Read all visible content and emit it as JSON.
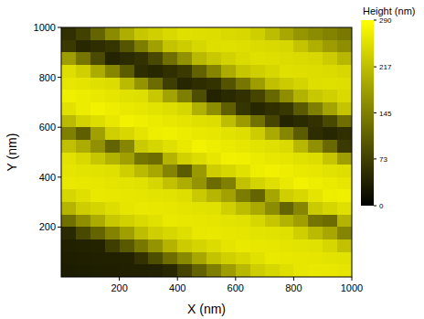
{
  "chart_data": {
    "type": "heatmap",
    "x_label": "X (nm)",
    "y_label": "Y (nm)",
    "colorbar_label": "Height (nm)",
    "xlim": [
      0,
      1000
    ],
    "ylim": [
      0,
      1000
    ],
    "xticks": [
      200,
      400,
      600,
      800,
      1000
    ],
    "yticks": [
      200,
      400,
      600,
      800,
      1000
    ],
    "color_range": [
      0,
      290
    ],
    "color_ticks": [
      0,
      73,
      145,
      217,
      290
    ],
    "x": [
      25,
      75,
      125,
      175,
      225,
      275,
      325,
      375,
      425,
      475,
      525,
      575,
      625,
      675,
      725,
      775,
      825,
      875,
      925,
      975
    ],
    "y": [
      975,
      925,
      875,
      825,
      775,
      725,
      675,
      625,
      575,
      525,
      475,
      425,
      375,
      325,
      275,
      225,
      175,
      125,
      75,
      25
    ],
    "cells": [
      [
        55,
        74,
        114,
        158,
        198,
        226,
        236,
        247,
        255,
        253,
        251,
        248,
        246,
        235,
        214,
        190,
        170,
        159,
        149,
        138
      ],
      [
        65,
        44,
        52,
        60,
        98,
        142,
        182,
        222,
        232,
        243,
        253,
        254,
        252,
        249,
        247,
        244,
        222,
        199,
        177,
        162
      ],
      [
        180,
        133,
        84,
        41,
        49,
        57,
        82,
        126,
        166,
        210,
        228,
        239,
        249,
        255,
        252,
        250,
        248,
        246,
        231,
        208
      ],
      [
        253,
        236,
        196,
        152,
        103,
        51,
        45,
        54,
        66,
        110,
        150,
        194,
        224,
        235,
        245,
        255,
        253,
        251,
        249,
        246
      ],
      [
        262,
        259,
        255,
        250,
        212,
        168,
        123,
        70,
        43,
        51,
        58,
        94,
        134,
        178,
        218,
        231,
        241,
        252,
        254,
        252
      ],
      [
        272,
        268,
        264,
        260,
        256,
        252,
        228,
        184,
        143,
        89,
        40,
        48,
        55,
        78,
        118,
        162,
        202,
        227,
        237,
        248
      ],
      [
        256,
        268,
        274,
        269,
        265,
        262,
        258,
        253,
        244,
        200,
        160,
        108,
        60,
        45,
        53,
        62,
        102,
        146,
        186,
        223
      ],
      [
        212,
        240,
        251,
        263,
        274,
        271,
        267,
        263,
        259,
        255,
        251,
        216,
        176,
        128,
        79,
        41,
        49,
        57,
        82,
        126
      ],
      [
        146,
        108,
        182,
        235,
        246,
        259,
        270,
        272,
        268,
        264,
        261,
        257,
        253,
        232,
        192,
        152,
        103,
        51,
        45,
        54
      ],
      [
        218,
        194,
        164,
        113,
        152,
        230,
        242,
        255,
        265,
        274,
        270,
        266,
        262,
        258,
        254,
        248,
        208,
        164,
        119,
        65
      ],
      [
        257,
        247,
        226,
        202,
        181,
        132,
        123,
        204,
        238,
        250,
        261,
        273,
        272,
        267,
        263,
        260,
        256,
        251,
        224,
        180
      ],
      [
        260,
        258,
        257,
        255,
        235,
        211,
        190,
        150,
        104,
        174,
        233,
        245,
        256,
        269,
        273,
        269,
        265,
        261,
        257,
        253
      ],
      [
        264,
        263,
        261,
        259,
        258,
        256,
        243,
        220,
        198,
        168,
        122,
        145,
        219,
        240,
        252,
        264,
        275,
        270,
        266,
        262
      ],
      [
        245,
        255,
        264,
        263,
        262,
        260,
        258,
        257,
        252,
        229,
        207,
        183,
        141,
        115,
        189,
        235,
        246,
        259,
        270,
        272
      ],
      [
        206,
        233,
        241,
        251,
        260,
        264,
        263,
        261,
        259,
        257,
        256,
        237,
        215,
        192,
        159,
        113,
        152,
        230,
        242,
        255
      ],
      [
        127,
        162,
        194,
        228,
        238,
        248,
        256,
        265,
        263,
        261,
        260,
        258,
        256,
        245,
        224,
        202,
        181,
        132,
        123,
        204
      ],
      [
        48,
        83,
        114,
        149,
        181,
        216,
        234,
        244,
        253,
        263,
        264,
        262,
        260,
        258,
        257,
        255,
        235,
        211,
        190,
        150
      ],
      [
        37,
        39,
        40,
        70,
        101,
        136,
        168,
        203,
        231,
        241,
        250,
        259,
        265,
        263,
        261,
        259,
        258,
        256,
        243,
        220
      ],
      [
        35,
        36,
        37,
        38,
        39,
        57,
        89,
        124,
        156,
        190,
        222,
        237,
        246,
        256,
        265,
        263,
        262,
        260,
        258,
        257
      ],
      [
        32,
        33,
        34,
        35,
        37,
        38,
        39,
        45,
        77,
        111,
        143,
        178,
        209,
        233,
        243,
        253,
        262,
        264,
        263,
        260
      ]
    ]
  }
}
